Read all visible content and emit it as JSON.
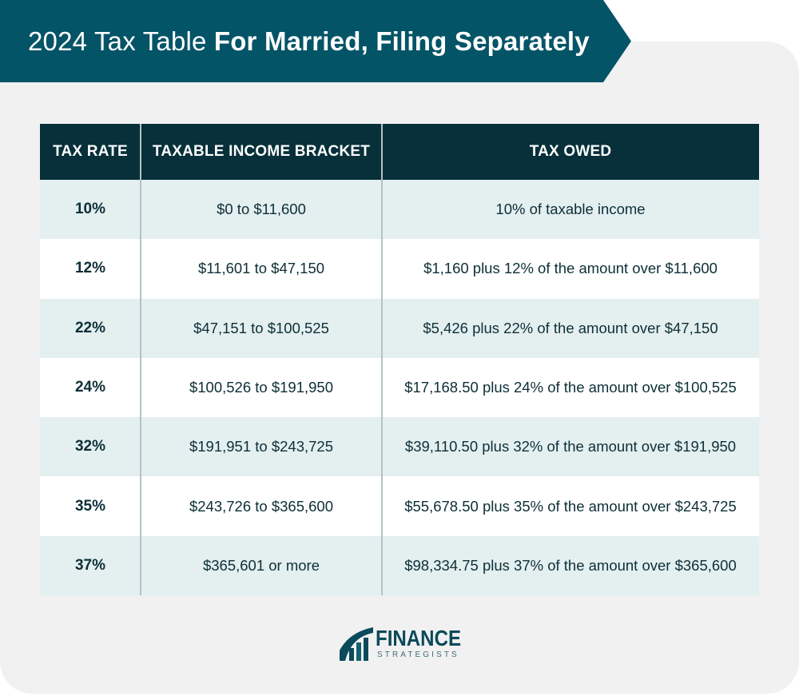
{
  "chart_data": {
    "type": "table",
    "title": {
      "regular": "2024 Tax Table",
      "bold": "For Married, Filing Separately"
    },
    "columns": [
      "TAX RATE",
      "TAXABLE INCOME BRACKET",
      "TAX OWED"
    ],
    "rows": [
      {
        "tax_rate": "10%",
        "income_bracket": "$0 to $11,600",
        "tax_owed": "10% of taxable income"
      },
      {
        "tax_rate": "12%",
        "income_bracket": "$11,601 to $47,150",
        "tax_owed": "$1,160 plus 12% of the amount over $11,600"
      },
      {
        "tax_rate": "22%",
        "income_bracket": "$47,151 to $100,525",
        "tax_owed": "$5,426 plus 22% of the amount over $47,150"
      },
      {
        "tax_rate": "24%",
        "income_bracket": "$100,526 to $191,950",
        "tax_owed": "$17,168.50 plus 24% of the amount over $100,525"
      },
      {
        "tax_rate": "32%",
        "income_bracket": "$191,951 to $243,725",
        "tax_owed": "$39,110.50 plus 32% of the amount over $191,950"
      },
      {
        "tax_rate": "35%",
        "income_bracket": "$243,726 to $365,600",
        "tax_owed": "$55,678.50 plus 35% of the amount over $243,725"
      },
      {
        "tax_rate": "37%",
        "income_bracket": "$365,601 or more",
        "tax_owed": "$98,334.75 plus 37% of the amount over $365,600"
      }
    ]
  },
  "brand": {
    "logo_icon": "finance-strategists-logo-icon",
    "name": "FINANCE",
    "tagline": "STRATEGISTS"
  },
  "colors": {
    "banner": "#045467",
    "table_header": "#07303a",
    "row_shaded": "#e4eff0",
    "row_plain": "#ffffff",
    "panel": "#f1f1f1",
    "text": "#0d2f37",
    "divider": "#b4c2c5",
    "logo": "#0b4a5a",
    "logo_tagline": "#3f6c78"
  }
}
